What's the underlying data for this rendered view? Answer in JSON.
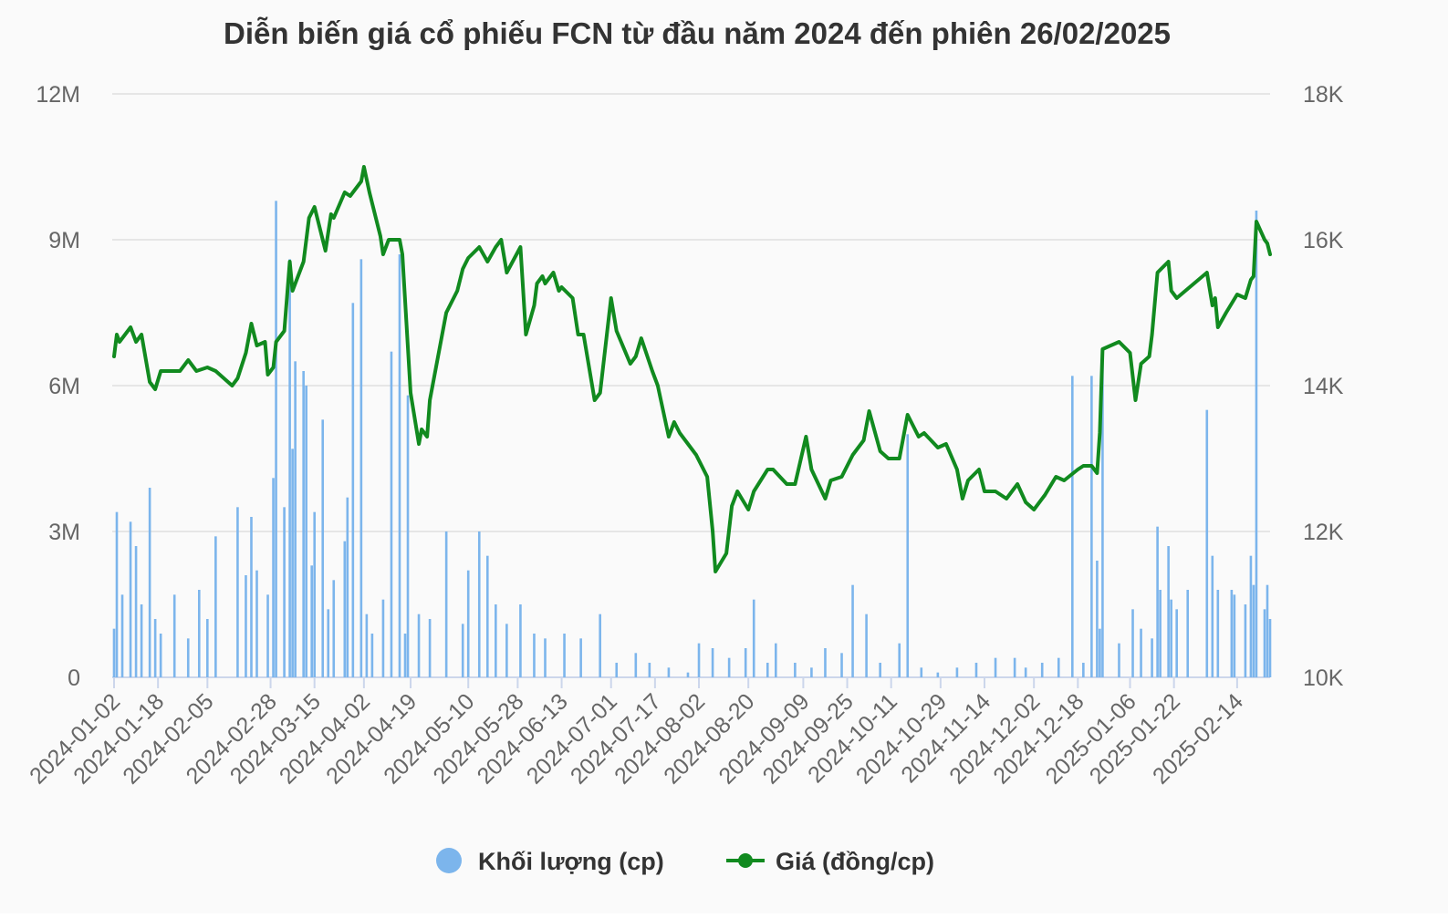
{
  "chart_data": {
    "type": "bar-line",
    "title": "Diễn biến giá cổ phiếu FCN từ đầu năm 2024 đến phiên 26/02/2025",
    "x_tick_labels": [
      "2024-01-02",
      "2024-01-18",
      "2024-02-05",
      "2024-02-28",
      "2024-03-15",
      "2024-04-02",
      "2024-04-19",
      "2024-05-10",
      "2024-05-28",
      "2024-06-13",
      "2024-07-01",
      "2024-07-17",
      "2024-08-02",
      "2024-08-20",
      "2024-09-09",
      "2024-09-25",
      "2024-10-11",
      "2024-10-29",
      "2024-11-14",
      "2024-12-02",
      "2024-12-18",
      "2025-01-06",
      "2025-01-22",
      "2025-02-14"
    ],
    "y_left": {
      "ticks": [
        "0",
        "3M",
        "6M",
        "9M",
        "12M"
      ],
      "min": 0,
      "max": 12000000
    },
    "y_right": {
      "ticks": [
        "10K",
        "12K",
        "14K",
        "16K",
        "18K"
      ],
      "min": 10000,
      "max": 18000
    },
    "grid": true,
    "legend_position": "bottom",
    "colors": {
      "volume": "#7cb5ec",
      "price": "#118a1f",
      "grid": "#e6e6e6"
    },
    "series": [
      {
        "name": "Khối lượng (cp)",
        "type": "bar",
        "axis": "left",
        "legend_icon": "circle"
      },
      {
        "name": "Giá (đồng/cp)",
        "type": "line",
        "axis": "right",
        "legend_icon": "line-dot"
      }
    ],
    "volume_samples": [
      [
        "2024-01-02",
        1000000
      ],
      [
        "2024-01-03",
        3400000
      ],
      [
        "2024-01-05",
        1700000
      ],
      [
        "2024-01-08",
        3200000
      ],
      [
        "2024-01-10",
        2700000
      ],
      [
        "2024-01-12",
        1500000
      ],
      [
        "2024-01-15",
        3900000
      ],
      [
        "2024-01-17",
        1200000
      ],
      [
        "2024-01-19",
        900000
      ],
      [
        "2024-01-24",
        1700000
      ],
      [
        "2024-01-29",
        800000
      ],
      [
        "2024-02-02",
        1800000
      ],
      [
        "2024-02-05",
        1200000
      ],
      [
        "2024-02-08",
        2900000
      ],
      [
        "2024-02-16",
        3500000
      ],
      [
        "2024-02-19",
        2100000
      ],
      [
        "2024-02-21",
        3300000
      ],
      [
        "2024-02-23",
        2200000
      ],
      [
        "2024-02-27",
        1700000
      ],
      [
        "2024-02-29",
        4100000
      ],
      [
        "2024-03-01",
        9800000
      ],
      [
        "2024-03-04",
        3500000
      ],
      [
        "2024-03-06",
        8600000
      ],
      [
        "2024-03-07",
        4700000
      ],
      [
        "2024-03-08",
        6500000
      ],
      [
        "2024-03-11",
        6300000
      ],
      [
        "2024-03-12",
        6000000
      ],
      [
        "2024-03-14",
        2300000
      ],
      [
        "2024-03-15",
        3400000
      ],
      [
        "2024-03-18",
        5300000
      ],
      [
        "2024-03-20",
        1400000
      ],
      [
        "2024-03-22",
        2000000
      ],
      [
        "2024-03-26",
        2800000
      ],
      [
        "2024-03-27",
        3700000
      ],
      [
        "2024-03-29",
        7700000
      ],
      [
        "2024-04-01",
        8600000
      ],
      [
        "2024-04-03",
        1300000
      ],
      [
        "2024-04-05",
        900000
      ],
      [
        "2024-04-09",
        1600000
      ],
      [
        "2024-04-12",
        6700000
      ],
      [
        "2024-04-15",
        8700000
      ],
      [
        "2024-04-17",
        900000
      ],
      [
        "2024-04-18",
        5800000
      ],
      [
        "2024-04-22",
        1300000
      ],
      [
        "2024-04-26",
        1200000
      ],
      [
        "2024-05-02",
        3000000
      ],
      [
        "2024-05-08",
        1100000
      ],
      [
        "2024-05-10",
        2200000
      ],
      [
        "2024-05-14",
        3000000
      ],
      [
        "2024-05-17",
        2500000
      ],
      [
        "2024-05-20",
        1500000
      ],
      [
        "2024-05-24",
        1100000
      ],
      [
        "2024-05-29",
        1500000
      ],
      [
        "2024-06-03",
        900000
      ],
      [
        "2024-06-07",
        800000
      ],
      [
        "2024-06-14",
        900000
      ],
      [
        "2024-06-20",
        800000
      ],
      [
        "2024-06-27",
        1300000
      ],
      [
        "2024-07-03",
        300000
      ],
      [
        "2024-07-10",
        500000
      ],
      [
        "2024-07-15",
        300000
      ],
      [
        "2024-07-22",
        200000
      ],
      [
        "2024-07-29",
        100000
      ],
      [
        "2024-08-02",
        700000
      ],
      [
        "2024-08-07",
        600000
      ],
      [
        "2024-08-13",
        400000
      ],
      [
        "2024-08-19",
        600000
      ],
      [
        "2024-08-22",
        1600000
      ],
      [
        "2024-08-27",
        300000
      ],
      [
        "2024-08-30",
        700000
      ],
      [
        "2024-09-06",
        300000
      ],
      [
        "2024-09-12",
        200000
      ],
      [
        "2024-09-17",
        600000
      ],
      [
        "2024-09-23",
        500000
      ],
      [
        "2024-09-27",
        1900000
      ],
      [
        "2024-10-02",
        1300000
      ],
      [
        "2024-10-07",
        300000
      ],
      [
        "2024-10-14",
        700000
      ],
      [
        "2024-10-17",
        5000000
      ],
      [
        "2024-10-22",
        200000
      ],
      [
        "2024-10-28",
        100000
      ],
      [
        "2024-11-04",
        200000
      ],
      [
        "2024-11-11",
        300000
      ],
      [
        "2024-11-18",
        400000
      ],
      [
        "2024-11-25",
        400000
      ],
      [
        "2024-11-29",
        200000
      ],
      [
        "2024-12-05",
        300000
      ],
      [
        "2024-12-11",
        400000
      ],
      [
        "2024-12-16",
        6200000
      ],
      [
        "2024-12-20",
        300000
      ],
      [
        "2024-12-23",
        6200000
      ],
      [
        "2024-12-25",
        2400000
      ],
      [
        "2024-12-26",
        1000000
      ],
      [
        "2024-12-27",
        6500000
      ],
      [
        "2025-01-02",
        700000
      ],
      [
        "2025-01-07",
        1400000
      ],
      [
        "2025-01-10",
        1000000
      ],
      [
        "2025-01-14",
        800000
      ],
      [
        "2025-01-16",
        3100000
      ],
      [
        "2025-01-17",
        1800000
      ],
      [
        "2025-01-20",
        2700000
      ],
      [
        "2025-01-21",
        1600000
      ],
      [
        "2025-01-23",
        1400000
      ],
      [
        "2025-01-27",
        1800000
      ],
      [
        "2025-02-03",
        5500000
      ],
      [
        "2025-02-05",
        2500000
      ],
      [
        "2025-02-07",
        1800000
      ],
      [
        "2025-02-12",
        1800000
      ],
      [
        "2025-02-13",
        1700000
      ],
      [
        "2025-02-17",
        1500000
      ],
      [
        "2025-02-19",
        2500000
      ],
      [
        "2025-02-20",
        1900000
      ],
      [
        "2025-02-21",
        9600000
      ],
      [
        "2025-02-24",
        1400000
      ],
      [
        "2025-02-25",
        1900000
      ],
      [
        "2025-02-26",
        1200000
      ]
    ],
    "price_samples": [
      [
        "2024-01-02",
        14400
      ],
      [
        "2024-01-03",
        14700
      ],
      [
        "2024-01-04",
        14600
      ],
      [
        "2024-01-08",
        14800
      ],
      [
        "2024-01-10",
        14600
      ],
      [
        "2024-01-12",
        14700
      ],
      [
        "2024-01-15",
        14050
      ],
      [
        "2024-01-17",
        13950
      ],
      [
        "2024-01-19",
        14200
      ],
      [
        "2024-01-26",
        14200
      ],
      [
        "2024-01-29",
        14350
      ],
      [
        "2024-02-01",
        14200
      ],
      [
        "2024-02-05",
        14250
      ],
      [
        "2024-02-08",
        14200
      ],
      [
        "2024-02-14",
        14000
      ],
      [
        "2024-02-16",
        14100
      ],
      [
        "2024-02-19",
        14450
      ],
      [
        "2024-02-21",
        14850
      ],
      [
        "2024-02-23",
        14550
      ],
      [
        "2024-02-26",
        14600
      ],
      [
        "2024-02-27",
        14150
      ],
      [
        "2024-02-29",
        14250
      ],
      [
        "2024-03-01",
        14600
      ],
      [
        "2024-03-04",
        14750
      ],
      [
        "2024-03-06",
        15700
      ],
      [
        "2024-03-07",
        15300
      ],
      [
        "2024-03-11",
        15700
      ],
      [
        "2024-03-13",
        16300
      ],
      [
        "2024-03-15",
        16450
      ],
      [
        "2024-03-18",
        16000
      ],
      [
        "2024-03-19",
        15850
      ],
      [
        "2024-03-21",
        16350
      ],
      [
        "2024-03-22",
        16300
      ],
      [
        "2024-03-26",
        16650
      ],
      [
        "2024-03-28",
        16600
      ],
      [
        "2024-04-01",
        16800
      ],
      [
        "2024-04-02",
        17000
      ],
      [
        "2024-04-04",
        16650
      ],
      [
        "2024-04-08",
        16050
      ],
      [
        "2024-04-09",
        15800
      ],
      [
        "2024-04-11",
        16000
      ],
      [
        "2024-04-15",
        16000
      ],
      [
        "2024-04-16",
        15800
      ],
      [
        "2024-04-19",
        13900
      ],
      [
        "2024-04-22",
        13200
      ],
      [
        "2024-04-23",
        13400
      ],
      [
        "2024-04-25",
        13300
      ],
      [
        "2024-04-26",
        13800
      ],
      [
        "2024-05-02",
        15000
      ],
      [
        "2024-05-06",
        15300
      ],
      [
        "2024-05-08",
        15600
      ],
      [
        "2024-05-10",
        15750
      ],
      [
        "2024-05-14",
        15900
      ],
      [
        "2024-05-17",
        15700
      ],
      [
        "2024-05-20",
        15900
      ],
      [
        "2024-05-22",
        16000
      ],
      [
        "2024-05-24",
        15550
      ],
      [
        "2024-05-29",
        15900
      ],
      [
        "2024-05-31",
        14700
      ],
      [
        "2024-06-03",
        15100
      ],
      [
        "2024-06-04",
        15400
      ],
      [
        "2024-06-06",
        15500
      ],
      [
        "2024-06-07",
        15400
      ],
      [
        "2024-06-10",
        15550
      ],
      [
        "2024-06-12",
        15300
      ],
      [
        "2024-06-13",
        15350
      ],
      [
        "2024-06-17",
        15200
      ],
      [
        "2024-06-19",
        14700
      ],
      [
        "2024-06-21",
        14700
      ],
      [
        "2024-06-25",
        13800
      ],
      [
        "2024-06-27",
        13900
      ],
      [
        "2024-07-01",
        15200
      ],
      [
        "2024-07-03",
        14750
      ],
      [
        "2024-07-08",
        14300
      ],
      [
        "2024-07-10",
        14400
      ],
      [
        "2024-07-12",
        14650
      ],
      [
        "2024-07-16",
        14200
      ],
      [
        "2024-07-18",
        14000
      ],
      [
        "2024-07-22",
        13300
      ],
      [
        "2024-07-24",
        13500
      ],
      [
        "2024-07-26",
        13350
      ],
      [
        "2024-07-29",
        13200
      ],
      [
        "2024-08-01",
        13050
      ],
      [
        "2024-08-05",
        12750
      ],
      [
        "2024-08-07",
        12000
      ],
      [
        "2024-08-08",
        11450
      ],
      [
        "2024-08-12",
        11700
      ],
      [
        "2024-08-14",
        12350
      ],
      [
        "2024-08-16",
        12550
      ],
      [
        "2024-08-20",
        12300
      ],
      [
        "2024-08-22",
        12550
      ],
      [
        "2024-08-27",
        12850
      ],
      [
        "2024-08-29",
        12850
      ],
      [
        "2024-09-03",
        12650
      ],
      [
        "2024-09-06",
        12650
      ],
      [
        "2024-09-10",
        13300
      ],
      [
        "2024-09-12",
        12850
      ],
      [
        "2024-09-17",
        12450
      ],
      [
        "2024-09-19",
        12700
      ],
      [
        "2024-09-23",
        12750
      ],
      [
        "2024-09-27",
        13050
      ],
      [
        "2024-10-01",
        13250
      ],
      [
        "2024-10-03",
        13650
      ],
      [
        "2024-10-07",
        13100
      ],
      [
        "2024-10-10",
        13000
      ],
      [
        "2024-10-14",
        13000
      ],
      [
        "2024-10-17",
        13600
      ],
      [
        "2024-10-21",
        13300
      ],
      [
        "2024-10-23",
        13350
      ],
      [
        "2024-10-28",
        13150
      ],
      [
        "2024-10-31",
        13200
      ],
      [
        "2024-11-04",
        12850
      ],
      [
        "2024-11-06",
        12450
      ],
      [
        "2024-11-08",
        12700
      ],
      [
        "2024-11-12",
        12850
      ],
      [
        "2024-11-14",
        12550
      ],
      [
        "2024-11-18",
        12550
      ],
      [
        "2024-11-22",
        12450
      ],
      [
        "2024-11-26",
        12650
      ],
      [
        "2024-11-29",
        12400
      ],
      [
        "2024-12-02",
        12300
      ],
      [
        "2024-12-06",
        12500
      ],
      [
        "2024-12-10",
        12750
      ],
      [
        "2024-12-13",
        12700
      ],
      [
        "2024-12-18",
        12850
      ],
      [
        "2024-12-20",
        12900
      ],
      [
        "2024-12-23",
        12900
      ],
      [
        "2024-12-25",
        12800
      ],
      [
        "2024-12-26",
        13350
      ],
      [
        "2024-12-27",
        14500
      ],
      [
        "2025-01-02",
        14600
      ],
      [
        "2025-01-06",
        14450
      ],
      [
        "2025-01-08",
        13800
      ],
      [
        "2025-01-10",
        14300
      ],
      [
        "2025-01-13",
        14400
      ],
      [
        "2025-01-14",
        14700
      ],
      [
        "2025-01-16",
        15550
      ],
      [
        "2025-01-20",
        15700
      ],
      [
        "2025-01-21",
        15300
      ],
      [
        "2025-01-23",
        15200
      ],
      [
        "2025-02-03",
        15550
      ],
      [
        "2025-02-05",
        15100
      ],
      [
        "2025-02-06",
        15200
      ],
      [
        "2025-02-07",
        14800
      ],
      [
        "2025-02-10",
        15000
      ],
      [
        "2025-02-14",
        15250
      ],
      [
        "2025-02-17",
        15200
      ],
      [
        "2025-02-19",
        15450
      ],
      [
        "2025-02-20",
        15500
      ],
      [
        "2025-02-21",
        16250
      ],
      [
        "2025-02-24",
        16000
      ],
      [
        "2025-02-25",
        15950
      ],
      [
        "2025-02-26",
        15800
      ]
    ]
  }
}
